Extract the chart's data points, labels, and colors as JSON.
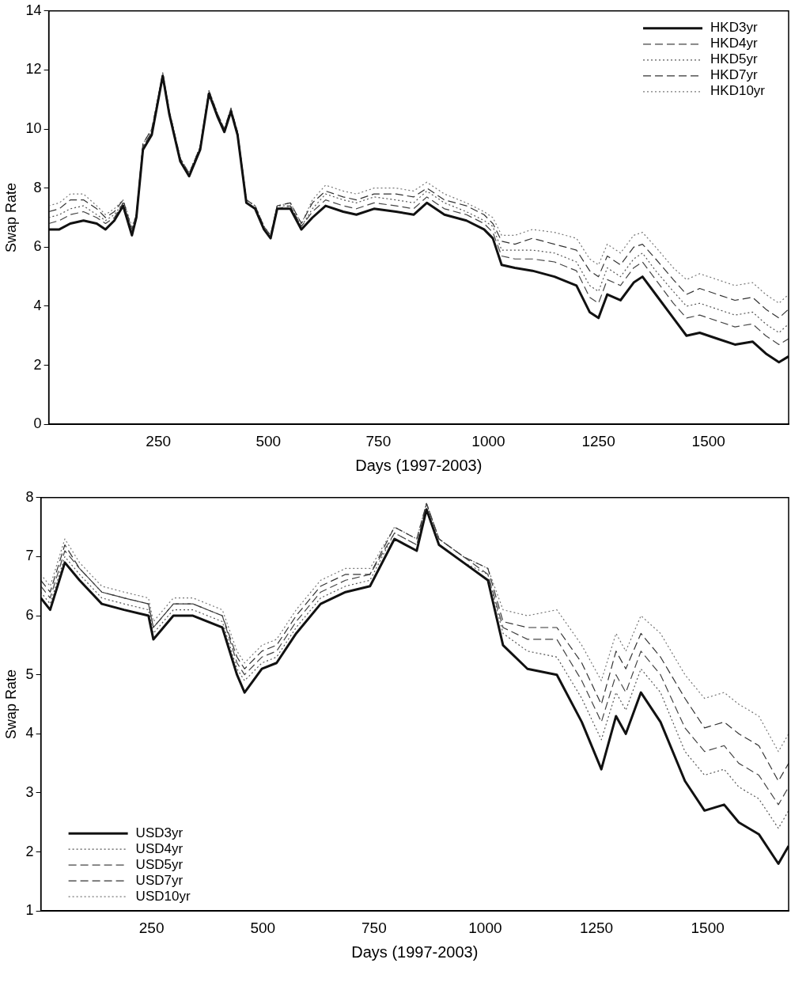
{
  "chart_data": [
    {
      "type": "line",
      "xlabel": "Days (1997-2003)",
      "ylabel": "Swap Rate",
      "x": [
        1,
        25,
        50,
        80,
        110,
        130,
        150,
        170,
        190,
        200,
        215,
        235,
        250,
        260,
        275,
        300,
        320,
        345,
        365,
        385,
        400,
        415,
        430,
        450,
        470,
        490,
        505,
        520,
        550,
        575,
        600,
        630,
        670,
        700,
        740,
        790,
        830,
        860,
        900,
        950,
        990,
        1010,
        1030,
        1060,
        1100,
        1150,
        1200,
        1230,
        1250,
        1270,
        1300,
        1330,
        1350,
        1380,
        1420,
        1450,
        1480,
        1520,
        1560,
        1600,
        1630,
        1660,
        1682
      ],
      "series": [
        {
          "name": "HKD3yr",
          "color": "#111111",
          "line_style": "solid",
          "values": [
            6.6,
            6.6,
            6.8,
            6.9,
            6.8,
            6.6,
            6.9,
            7.4,
            6.4,
            7.0,
            9.3,
            9.8,
            11.0,
            11.8,
            10.5,
            8.9,
            8.4,
            9.3,
            11.2,
            10.4,
            9.9,
            10.6,
            9.8,
            7.5,
            7.3,
            6.6,
            6.3,
            7.3,
            7.3,
            6.6,
            7.0,
            7.4,
            7.2,
            7.1,
            7.3,
            7.2,
            7.1,
            7.5,
            7.1,
            6.9,
            6.6,
            6.3,
            5.4,
            5.3,
            5.2,
            5.0,
            4.7,
            3.8,
            3.6,
            4.4,
            4.2,
            4.8,
            5.0,
            4.4,
            3.6,
            3.0,
            3.1,
            2.9,
            2.7,
            2.8,
            2.4,
            2.1,
            2.3
          ]
        },
        {
          "name": "HKD4yr",
          "color": "#444444",
          "line_style": "dashed",
          "values": [
            6.8,
            6.9,
            7.1,
            7.2,
            7.0,
            6.8,
            7.0,
            7.5,
            6.5,
            7.0,
            9.4,
            9.9,
            11.0,
            11.8,
            10.5,
            8.9,
            8.4,
            9.3,
            11.2,
            10.4,
            9.9,
            10.6,
            9.8,
            7.5,
            7.3,
            6.6,
            6.3,
            7.3,
            7.4,
            6.7,
            7.2,
            7.6,
            7.4,
            7.3,
            7.5,
            7.4,
            7.3,
            7.7,
            7.3,
            7.1,
            6.8,
            6.5,
            5.7,
            5.6,
            5.6,
            5.5,
            5.2,
            4.3,
            4.1,
            4.9,
            4.7,
            5.3,
            5.5,
            4.9,
            4.1,
            3.6,
            3.7,
            3.5,
            3.3,
            3.4,
            3.0,
            2.7,
            2.9
          ]
        },
        {
          "name": "HKD5yr",
          "color": "#555555",
          "line_style": "dotted",
          "values": [
            7.0,
            7.1,
            7.3,
            7.4,
            7.1,
            6.9,
            7.1,
            7.5,
            6.6,
            7.1,
            9.4,
            9.9,
            11.1,
            11.9,
            10.6,
            9.0,
            8.5,
            9.4,
            11.3,
            10.5,
            10.0,
            10.7,
            9.9,
            7.6,
            7.4,
            6.7,
            6.4,
            7.4,
            7.4,
            6.7,
            7.3,
            7.8,
            7.6,
            7.5,
            7.7,
            7.6,
            7.5,
            7.9,
            7.5,
            7.2,
            6.9,
            6.7,
            5.9,
            5.9,
            5.9,
            5.8,
            5.5,
            4.7,
            4.5,
            5.3,
            5.0,
            5.6,
            5.8,
            5.2,
            4.5,
            4.0,
            4.1,
            3.9,
            3.7,
            3.8,
            3.4,
            3.1,
            3.4
          ]
        },
        {
          "name": "HKD7yr",
          "color": "#333333",
          "line_style": "dashed",
          "values": [
            7.2,
            7.3,
            7.6,
            7.6,
            7.3,
            7.0,
            7.2,
            7.6,
            6.6,
            7.1,
            9.5,
            10.0,
            11.1,
            11.9,
            10.6,
            9.0,
            8.5,
            9.4,
            11.3,
            10.5,
            10.0,
            10.7,
            9.9,
            7.6,
            7.4,
            6.7,
            6.4,
            7.4,
            7.5,
            6.8,
            7.5,
            7.9,
            7.7,
            7.6,
            7.8,
            7.8,
            7.7,
            8.0,
            7.6,
            7.4,
            7.1,
            6.8,
            6.2,
            6.1,
            6.3,
            6.1,
            5.9,
            5.2,
            5.0,
            5.7,
            5.4,
            6.0,
            6.1,
            5.6,
            4.9,
            4.4,
            4.6,
            4.4,
            4.2,
            4.3,
            3.9,
            3.6,
            3.9
          ]
        },
        {
          "name": "HKD10yr",
          "color": "#777777",
          "line_style": "dotted",
          "values": [
            7.4,
            7.5,
            7.8,
            7.8,
            7.4,
            7.1,
            7.3,
            7.6,
            6.7,
            7.1,
            9.5,
            10.0,
            11.1,
            11.9,
            10.6,
            9.0,
            8.5,
            9.4,
            11.3,
            10.5,
            10.0,
            10.7,
            9.9,
            7.6,
            7.4,
            6.7,
            6.4,
            7.4,
            7.5,
            6.8,
            7.6,
            8.1,
            7.9,
            7.8,
            8.0,
            8.0,
            7.9,
            8.2,
            7.8,
            7.5,
            7.2,
            7.0,
            6.4,
            6.4,
            6.6,
            6.5,
            6.3,
            5.6,
            5.4,
            6.1,
            5.8,
            6.4,
            6.5,
            6.0,
            5.3,
            4.9,
            5.1,
            4.9,
            4.7,
            4.8,
            4.4,
            4.1,
            4.4
          ]
        }
      ],
      "xlim": [
        1,
        1682
      ],
      "xticks": [
        250,
        500,
        750,
        1000,
        1250,
        1500
      ],
      "ylim": [
        0,
        14
      ],
      "yticks": [
        0,
        2,
        4,
        6,
        8,
        10,
        12,
        14
      ],
      "legend": "top right",
      "grid": false,
      "marker": "none"
    },
    {
      "type": "line",
      "xlabel": "Days (1997-2003)",
      "ylabel": "Swap Rate",
      "x": [
        1,
        22,
        55,
        88,
        138,
        188,
        243,
        254,
        299,
        343,
        409,
        442,
        459,
        498,
        531,
        575,
        630,
        686,
        741,
        796,
        846,
        868,
        896,
        951,
        1006,
        1040,
        1095,
        1161,
        1217,
        1261,
        1294,
        1316,
        1350,
        1394,
        1449,
        1493,
        1537,
        1570,
        1615,
        1659,
        1682
      ],
      "series": [
        {
          "name": "USD3yr",
          "color": "#111111",
          "line_style": "solid",
          "values": [
            6.3,
            6.1,
            6.9,
            6.6,
            6.2,
            6.1,
            6.0,
            5.6,
            6.0,
            6.0,
            5.8,
            5.0,
            4.7,
            5.1,
            5.2,
            5.7,
            6.2,
            6.4,
            6.5,
            7.3,
            7.1,
            7.8,
            7.2,
            6.9,
            6.6,
            5.5,
            5.1,
            5.0,
            4.2,
            3.4,
            4.3,
            4.0,
            4.7,
            4.2,
            3.2,
            2.7,
            2.8,
            2.5,
            2.3,
            1.8,
            2.1
          ]
        },
        {
          "name": "USD4yr",
          "color": "#555555",
          "line_style": "dotted",
          "values": [
            6.4,
            6.2,
            7.0,
            6.7,
            6.3,
            6.2,
            6.1,
            5.7,
            6.1,
            6.1,
            5.9,
            5.1,
            4.9,
            5.2,
            5.3,
            5.8,
            6.3,
            6.5,
            6.6,
            7.4,
            7.2,
            7.8,
            7.2,
            6.9,
            6.7,
            5.7,
            5.4,
            5.3,
            4.6,
            3.9,
            4.7,
            4.4,
            5.1,
            4.7,
            3.7,
            3.3,
            3.4,
            3.1,
            2.9,
            2.4,
            2.7
          ]
        },
        {
          "name": "USD5yr",
          "color": "#444444",
          "line_style": "dashed",
          "values": [
            6.5,
            6.3,
            7.1,
            6.8,
            6.4,
            6.3,
            6.2,
            5.8,
            6.2,
            6.2,
            6.0,
            5.2,
            5.0,
            5.3,
            5.4,
            5.9,
            6.4,
            6.6,
            6.7,
            7.4,
            7.2,
            7.9,
            7.3,
            7.0,
            6.7,
            5.8,
            5.6,
            5.6,
            4.9,
            4.2,
            5.0,
            4.7,
            5.4,
            5.0,
            4.1,
            3.7,
            3.8,
            3.5,
            3.3,
            2.8,
            3.1
          ]
        },
        {
          "name": "USD7yr",
          "color": "#333333",
          "line_style": "dashed",
          "values": [
            6.6,
            6.4,
            7.2,
            6.8,
            6.4,
            6.3,
            6.2,
            5.8,
            6.2,
            6.2,
            6.0,
            5.3,
            5.1,
            5.4,
            5.5,
            6.0,
            6.5,
            6.7,
            6.7,
            7.5,
            7.3,
            7.9,
            7.3,
            7.0,
            6.8,
            5.9,
            5.8,
            5.8,
            5.2,
            4.5,
            5.4,
            5.1,
            5.7,
            5.3,
            4.6,
            4.1,
            4.2,
            4.0,
            3.8,
            3.2,
            3.5
          ]
        },
        {
          "name": "USD10yr",
          "color": "#777777",
          "line_style": "dotted",
          "values": [
            6.7,
            6.5,
            7.3,
            6.9,
            6.5,
            6.4,
            6.3,
            5.9,
            6.3,
            6.3,
            6.1,
            5.4,
            5.2,
            5.5,
            5.6,
            6.1,
            6.6,
            6.8,
            6.8,
            7.5,
            7.3,
            7.9,
            7.3,
            7.0,
            6.8,
            6.1,
            6.0,
            6.1,
            5.5,
            4.9,
            5.7,
            5.4,
            6.0,
            5.7,
            5.0,
            4.6,
            4.7,
            4.5,
            4.3,
            3.7,
            4.0
          ]
        }
      ],
      "xlim": [
        1,
        1682
      ],
      "xticks": [
        250,
        500,
        750,
        1000,
        1250,
        1500
      ],
      "ylim": [
        1,
        8
      ],
      "yticks": [
        1,
        2,
        3,
        4,
        5,
        6,
        7,
        8
      ],
      "legend": "bottom left",
      "grid": false,
      "marker": "none"
    }
  ]
}
